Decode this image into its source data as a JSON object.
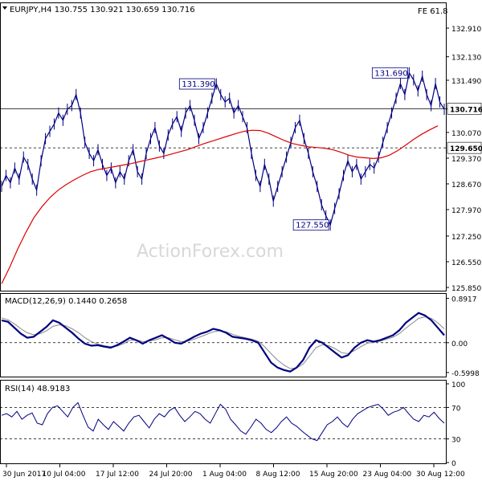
{
  "chart_data": {
    "type": "line",
    "instrument": "EURJPY,H4",
    "ohlc_header": {
      "open": "130.755",
      "high": "130.921",
      "low": "130.659",
      "close": "130.716"
    },
    "title": "EURJPY,H4  130.755 130.921 130.659 130.716",
    "fib_label": "FE 61.8",
    "watermark": "ActionForex.com",
    "x_labels": [
      "30 Jun 2017",
      "10 Jul 04:00",
      "17 Jul 12:00",
      "24 Jul 20:00",
      "1 Aug 04:00",
      "8 Aug 12:00",
      "15 Aug 20:00",
      "23 Aug 04:00",
      "30 Aug 12:00"
    ],
    "price_panel": {
      "ylim": [
        125.85,
        133.5
      ],
      "y_ticks": [
        "132.910",
        "132.130",
        "131.490",
        "130.710",
        "130.070",
        "129.370",
        "128.670",
        "127.970",
        "127.250",
        "126.550",
        "125.850"
      ],
      "series": [
        {
          "name": "Close",
          "values": [
            128.6,
            128.9,
            128.7,
            129.1,
            128.8,
            129.4,
            129.2,
            128.8,
            128.5,
            129.3,
            129.9,
            130.1,
            130.3,
            130.6,
            130.4,
            130.7,
            130.8,
            131.1,
            130.6,
            129.8,
            129.5,
            129.3,
            129.6,
            129.2,
            128.9,
            129.1,
            128.7,
            129.0,
            128.8,
            129.3,
            129.6,
            129.0,
            128.8,
            129.5,
            129.9,
            130.2,
            129.7,
            129.5,
            130.0,
            130.3,
            130.5,
            130.1,
            130.6,
            130.8,
            130.4,
            129.9,
            130.2,
            130.6,
            131.0,
            131.39,
            131.1,
            130.9,
            131.0,
            130.6,
            130.8,
            130.5,
            130.2,
            129.5,
            128.9,
            128.6,
            129.2,
            128.8,
            128.2,
            128.6,
            129.0,
            129.4,
            129.8,
            130.2,
            130.4,
            129.9,
            129.5,
            129.0,
            128.6,
            128.1,
            127.8,
            127.55,
            128.0,
            128.4,
            128.9,
            129.3,
            129.0,
            129.2,
            128.8,
            129.0,
            129.2,
            129.1,
            129.4,
            129.8,
            130.2,
            130.6,
            131.0,
            131.4,
            131.1,
            131.69,
            131.5,
            131.2,
            131.6,
            131.1,
            130.8,
            131.4,
            130.9,
            130.7
          ],
          "color": "#000080"
        },
        {
          "name": "MA",
          "color": "#dd0000",
          "values": [
            125.95,
            126.4,
            126.9,
            127.35,
            127.75,
            128.05,
            128.3,
            128.5,
            128.65,
            128.78,
            128.9,
            129.0,
            129.06,
            129.1,
            129.14,
            129.18,
            129.22,
            129.27,
            129.32,
            129.37,
            129.42,
            129.48,
            129.54,
            129.6,
            129.68,
            129.76,
            129.83,
            129.9,
            129.97,
            130.04,
            130.1,
            130.13,
            130.12,
            130.05,
            129.95,
            129.85,
            129.77,
            129.72,
            129.68,
            129.66,
            129.64,
            129.6,
            129.53,
            129.45,
            129.4,
            129.38,
            129.36,
            129.38,
            129.45,
            129.57,
            129.72,
            129.88,
            130.02,
            130.14,
            130.25
          ]
        }
      ],
      "h_levels": [
        {
          "label": "130.716",
          "value": 130.716,
          "style": "solid"
        },
        {
          "label": "129.650",
          "value": 129.65,
          "style": "dashed"
        }
      ],
      "annotations": [
        {
          "text": "131.390",
          "value": 131.39
        },
        {
          "text": "127.550",
          "value": 127.55
        },
        {
          "text": "131.690",
          "value": 131.69
        }
      ]
    },
    "macd_panel": {
      "label": "MACD(12,26,9) 0.1440 0.2658",
      "ylim": [
        -0.65,
        0.95
      ],
      "y_ticks": [
        "0.8917",
        "0.00",
        "-0.5998"
      ],
      "series": [
        {
          "name": "MACD",
          "color": "#000080",
          "values": [
            0.45,
            0.42,
            0.3,
            0.18,
            0.1,
            0.12,
            0.22,
            0.32,
            0.45,
            0.4,
            0.3,
            0.2,
            0.08,
            -0.02,
            -0.06,
            -0.05,
            -0.08,
            -0.1,
            -0.05,
            0.02,
            0.1,
            0.05,
            -0.02,
            0.05,
            0.1,
            0.15,
            0.08,
            0.0,
            -0.02,
            0.05,
            0.12,
            0.18,
            0.22,
            0.28,
            0.25,
            0.2,
            0.12,
            0.1,
            0.08,
            0.05,
            0.0,
            -0.2,
            -0.4,
            -0.5,
            -0.55,
            -0.58,
            -0.5,
            -0.35,
            -0.1,
            0.05,
            0.0,
            -0.1,
            -0.2,
            -0.3,
            -0.25,
            -0.1,
            0.0,
            0.05,
            0.02,
            0.05,
            0.1,
            0.15,
            0.25,
            0.4,
            0.5,
            0.6,
            0.55,
            0.45,
            0.3,
            0.15
          ]
        },
        {
          "name": "Signal",
          "color": "#888888",
          "values": [
            0.5,
            0.46,
            0.38,
            0.28,
            0.2,
            0.16,
            0.18,
            0.24,
            0.33,
            0.36,
            0.34,
            0.28,
            0.2,
            0.1,
            0.02,
            -0.03,
            -0.06,
            -0.08,
            -0.07,
            -0.02,
            0.05,
            0.06,
            0.02,
            0.03,
            0.06,
            0.1,
            0.1,
            0.06,
            0.02,
            0.03,
            0.07,
            0.12,
            0.17,
            0.22,
            0.24,
            0.22,
            0.17,
            0.13,
            0.1,
            0.07,
            0.03,
            -0.08,
            -0.22,
            -0.35,
            -0.45,
            -0.52,
            -0.51,
            -0.43,
            -0.27,
            -0.1,
            -0.04,
            -0.06,
            -0.12,
            -0.2,
            -0.22,
            -0.16,
            -0.08,
            -0.01,
            0.01,
            0.03,
            0.07,
            0.11,
            0.18,
            0.29,
            0.39,
            0.49,
            0.52,
            0.49,
            0.4,
            0.28
          ]
        }
      ]
    },
    "rsi_panel": {
      "label": "RSI(14) 48.9183",
      "ylim": [
        0,
        100
      ],
      "y_ticks": [
        "100",
        "70",
        "30",
        "0"
      ],
      "series": [
        {
          "name": "RSI",
          "color": "#000080",
          "values": [
            60,
            62,
            58,
            65,
            55,
            60,
            63,
            50,
            48,
            62,
            70,
            72,
            65,
            58,
            70,
            76,
            60,
            45,
            40,
            55,
            48,
            42,
            52,
            46,
            40,
            50,
            58,
            60,
            52,
            44,
            55,
            62,
            58,
            66,
            70,
            60,
            52,
            58,
            65,
            62,
            55,
            50,
            62,
            74,
            68,
            55,
            48,
            40,
            36,
            45,
            55,
            50,
            42,
            38,
            44,
            52,
            58,
            50,
            46,
            40,
            35,
            30,
            28,
            38,
            48,
            52,
            58,
            50,
            45,
            55,
            62,
            66,
            70,
            72,
            74,
            68,
            60,
            64,
            66,
            70,
            62,
            55,
            52,
            60,
            58,
            64,
            56,
            50
          ]
        }
      ]
    }
  }
}
